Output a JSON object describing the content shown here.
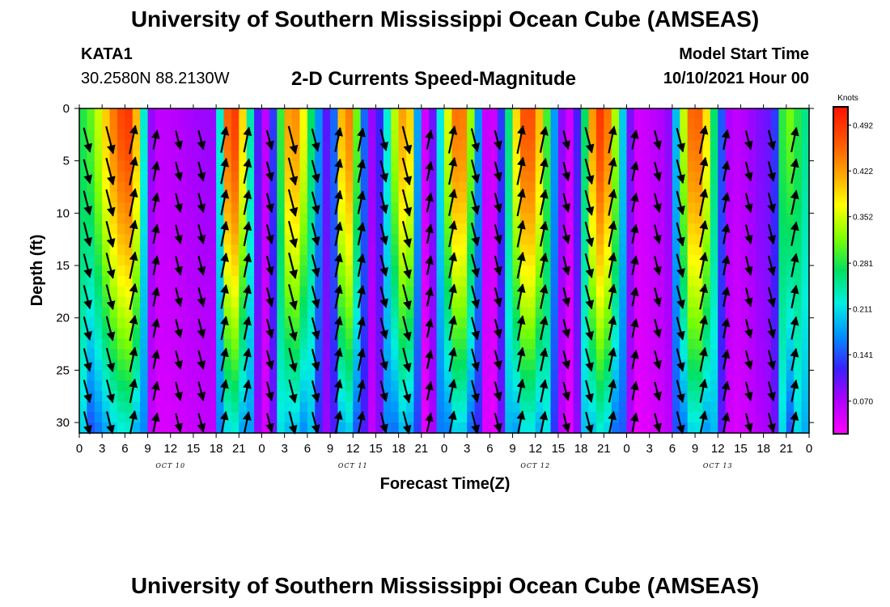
{
  "header": {
    "title": "University of Southern Mississippi Ocean Cube (AMSEAS)",
    "station": "KATA1",
    "coordinates": "30.2580N  88.2130W",
    "subtitle": "2-D Currents Speed-Magnitude",
    "model_start_label": "Model Start Time",
    "model_start_value": "10/10/2021 Hour 00"
  },
  "footer": {
    "title": "University of Southern Mississippi Ocean Cube (AMSEAS)"
  },
  "chart_data": {
    "type": "heatmap",
    "title": "2-D Currents Speed-Magnitude",
    "xlabel": "Forecast Time(Z)",
    "ylabel": "Depth (ft)",
    "x_ticks": [
      "0",
      "3",
      "6",
      "9",
      "12",
      "15",
      "18",
      "21",
      "0",
      "3",
      "6",
      "9",
      "12",
      "15",
      "18",
      "21",
      "0",
      "3",
      "6",
      "9",
      "12",
      "15",
      "18",
      "21",
      "0",
      "3",
      "6",
      "9",
      "12",
      "15",
      "18",
      "21",
      "0"
    ],
    "x_range_hours": [
      0,
      96
    ],
    "day_labels": [
      {
        "label": "OCT 10",
        "hour": 12
      },
      {
        "label": "OCT 11",
        "hour": 36
      },
      {
        "label": "OCT 12",
        "hour": 60
      },
      {
        "label": "OCT 13",
        "hour": 84
      }
    ],
    "y_ticks": [
      0,
      5,
      10,
      15,
      20,
      25,
      30
    ],
    "y_range": [
      0,
      31
    ],
    "y_inverted": true,
    "colorbar": {
      "title": "Knots",
      "labels": [
        "0.492",
        "0.422",
        "0.352",
        "0.281",
        "0.211",
        "0.141",
        "0.070"
      ],
      "range": [
        0.02,
        0.52
      ],
      "colormap": [
        "#ff00ff",
        "#b000ff",
        "#3a20ff",
        "#0090ff",
        "#00f0e0",
        "#00e060",
        "#80ff00",
        "#ffff00",
        "#ffa000",
        "#ff5000",
        "#ff1000"
      ]
    },
    "depth_samples_ft": [
      0,
      3,
      6,
      9,
      12,
      15,
      18,
      21,
      24,
      27,
      30
    ],
    "surface_speed_peaks": [
      {
        "hour": 6.5,
        "speed": 0.49
      },
      {
        "hour": 20,
        "speed": 0.5
      },
      {
        "hour": 28,
        "speed": 0.44
      },
      {
        "hour": 35,
        "speed": 0.46
      },
      {
        "hour": 43,
        "speed": 0.43
      },
      {
        "hour": 50,
        "speed": 0.46
      },
      {
        "hour": 59,
        "speed": 0.48
      },
      {
        "hour": 68.5,
        "speed": 0.49
      },
      {
        "hour": 81,
        "speed": 0.47
      },
      {
        "hour": 93,
        "speed": 0.32
      }
    ],
    "speed_minima": [
      {
        "hour": 10,
        "speed": 0.06
      },
      {
        "hour": 17.5,
        "speed": 0.08
      },
      {
        "hour": 24.5,
        "speed": 0.06
      },
      {
        "hour": 33,
        "speed": 0.1
      },
      {
        "hour": 38.5,
        "speed": 0.08
      },
      {
        "hour": 45.5,
        "speed": 0.05
      },
      {
        "hour": 54,
        "speed": 0.04
      },
      {
        "hour": 64.5,
        "speed": 0.05
      },
      {
        "hour": 73.5,
        "speed": 0.05
      },
      {
        "hour": 77,
        "speed": 0.07
      },
      {
        "hour": 86,
        "speed": 0.06
      },
      {
        "hour": 91,
        "speed": 0.1
      }
    ]
  }
}
